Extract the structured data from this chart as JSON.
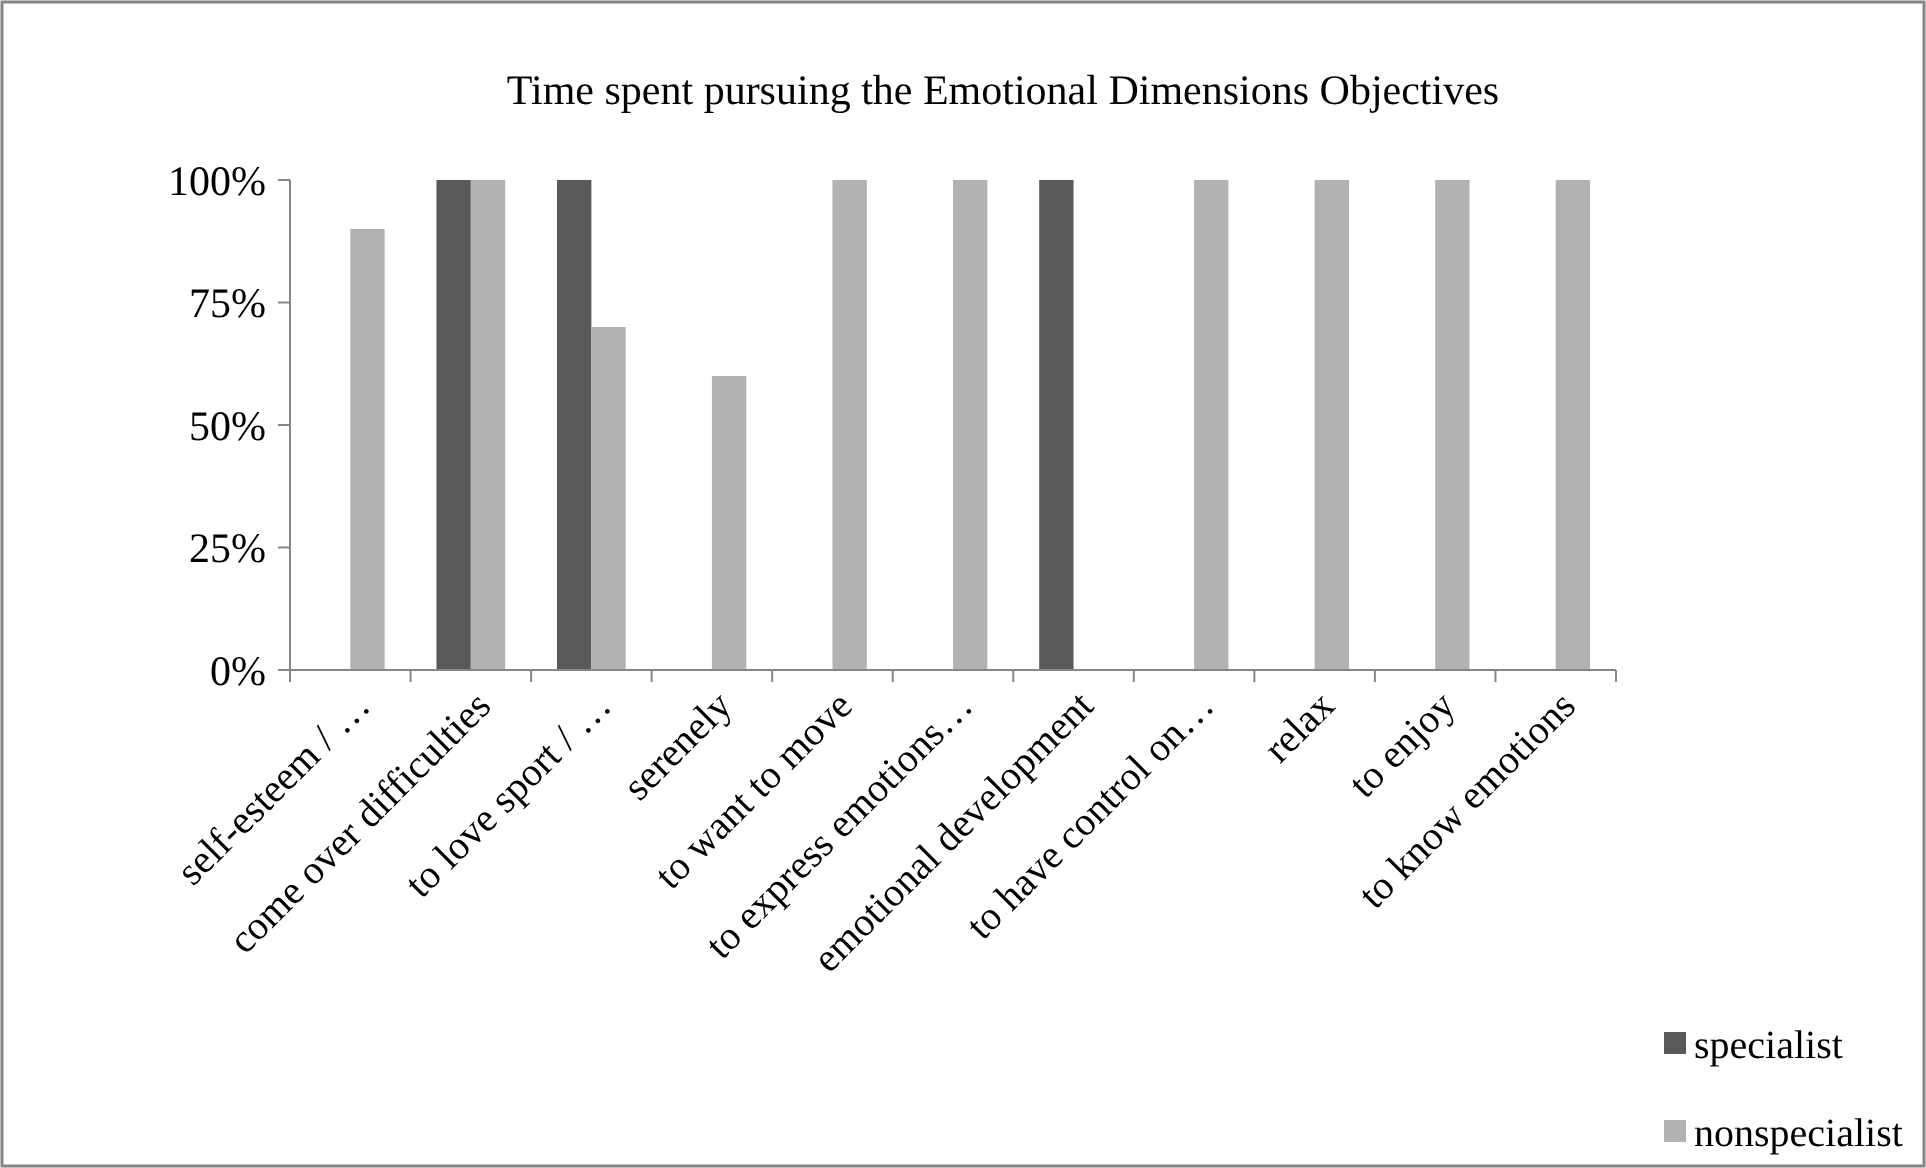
{
  "chart_data": {
    "type": "bar",
    "title": "Time spent pursuing the Emotional Dimensions Objectives",
    "categories": [
      "self-esteem / …",
      "come over difficulties",
      "to love sport / …",
      "serenely",
      "to want to move",
      "to express emotions…",
      "emotional development",
      "to have control on…",
      "relax",
      "to enjoy",
      "to know emotions"
    ],
    "series": [
      {
        "name": "specialist",
        "color": "#595959",
        "values": [
          0,
          100,
          100,
          0,
          0,
          0,
          100,
          0,
          0,
          0,
          0
        ]
      },
      {
        "name": "nonspecialist",
        "color": "#b2b2b2",
        "values": [
          90,
          100,
          70,
          60,
          100,
          100,
          0,
          100,
          100,
          100,
          100
        ]
      }
    ],
    "ylim": [
      0,
      100
    ],
    "yticks": [
      {
        "value": 0,
        "label": "0%"
      },
      {
        "value": 25,
        "label": "25%"
      },
      {
        "value": 50,
        "label": "50%"
      },
      {
        "value": 75,
        "label": "75%"
      },
      {
        "value": 100,
        "label": "100%"
      }
    ],
    "legend": "bottom right"
  }
}
